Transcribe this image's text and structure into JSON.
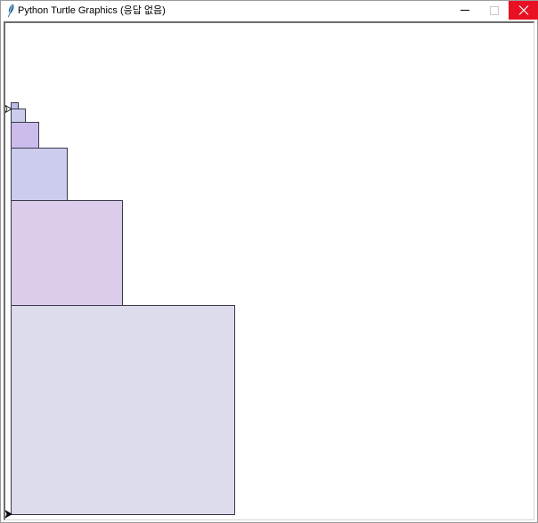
{
  "window": {
    "title": "Python Turtle Graphics (응답 없음)",
    "controls": [
      "minimize",
      "maximize",
      "close"
    ],
    "close_color": "#e81123"
  },
  "canvas": {
    "background": "#ffffff",
    "squares": [
      {
        "fill": "#dcdcec"
      },
      {
        "fill": "#dcccec"
      },
      {
        "fill": "#ccccec"
      },
      {
        "fill": "#ccbcec"
      },
      {
        "fill": "#ccccec"
      },
      {
        "fill": "#bcbcec"
      }
    ],
    "turtles": [
      {
        "shape": "classic-arrow",
        "heading": "east",
        "color": "#000000"
      },
      {
        "shape": "classic-arrow",
        "heading": "east",
        "color": "#000000"
      }
    ]
  }
}
